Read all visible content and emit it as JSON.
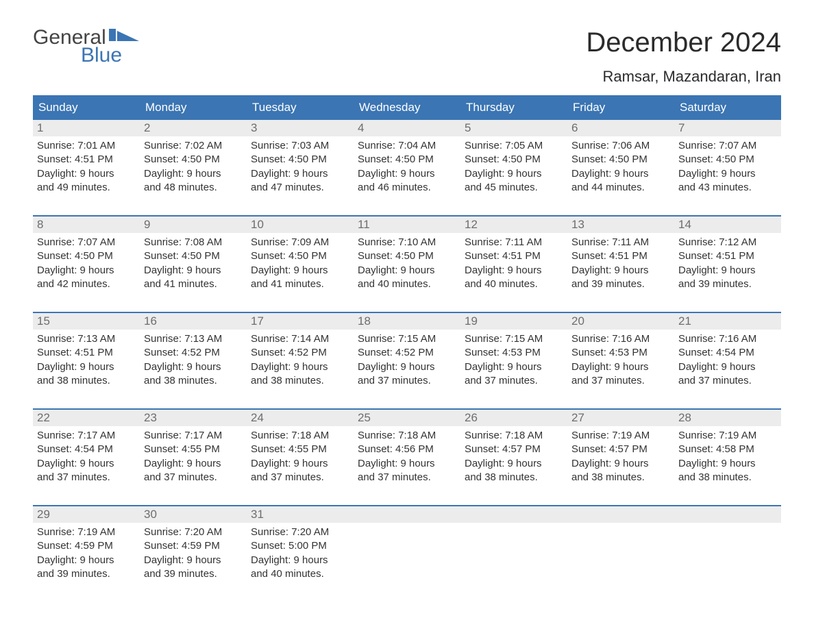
{
  "logo": {
    "word1": "General",
    "word2": "Blue",
    "accent_color": "#3b75b3"
  },
  "title": "December 2024",
  "location": "Ramsar, Mazandaran, Iran",
  "colors": {
    "header_bg": "#3b75b3",
    "header_text": "#ffffff",
    "daynum_bg": "#ececec",
    "daynum_text": "#6d6d6d",
    "body_text": "#333333",
    "page_bg": "#ffffff",
    "row_border": "#3b75b3"
  },
  "typography": {
    "title_fontsize": 40,
    "location_fontsize": 22,
    "header_fontsize": 17,
    "daynum_fontsize": 17,
    "body_fontsize": 15
  },
  "day_names": [
    "Sunday",
    "Monday",
    "Tuesday",
    "Wednesday",
    "Thursday",
    "Friday",
    "Saturday"
  ],
  "weeks": [
    [
      {
        "n": "1",
        "sunrise": "Sunrise: 7:01 AM",
        "sunset": "Sunset: 4:51 PM",
        "d1": "Daylight: 9 hours",
        "d2": "and 49 minutes."
      },
      {
        "n": "2",
        "sunrise": "Sunrise: 7:02 AM",
        "sunset": "Sunset: 4:50 PM",
        "d1": "Daylight: 9 hours",
        "d2": "and 48 minutes."
      },
      {
        "n": "3",
        "sunrise": "Sunrise: 7:03 AM",
        "sunset": "Sunset: 4:50 PM",
        "d1": "Daylight: 9 hours",
        "d2": "and 47 minutes."
      },
      {
        "n": "4",
        "sunrise": "Sunrise: 7:04 AM",
        "sunset": "Sunset: 4:50 PM",
        "d1": "Daylight: 9 hours",
        "d2": "and 46 minutes."
      },
      {
        "n": "5",
        "sunrise": "Sunrise: 7:05 AM",
        "sunset": "Sunset: 4:50 PM",
        "d1": "Daylight: 9 hours",
        "d2": "and 45 minutes."
      },
      {
        "n": "6",
        "sunrise": "Sunrise: 7:06 AM",
        "sunset": "Sunset: 4:50 PM",
        "d1": "Daylight: 9 hours",
        "d2": "and 44 minutes."
      },
      {
        "n": "7",
        "sunrise": "Sunrise: 7:07 AM",
        "sunset": "Sunset: 4:50 PM",
        "d1": "Daylight: 9 hours",
        "d2": "and 43 minutes."
      }
    ],
    [
      {
        "n": "8",
        "sunrise": "Sunrise: 7:07 AM",
        "sunset": "Sunset: 4:50 PM",
        "d1": "Daylight: 9 hours",
        "d2": "and 42 minutes."
      },
      {
        "n": "9",
        "sunrise": "Sunrise: 7:08 AM",
        "sunset": "Sunset: 4:50 PM",
        "d1": "Daylight: 9 hours",
        "d2": "and 41 minutes."
      },
      {
        "n": "10",
        "sunrise": "Sunrise: 7:09 AM",
        "sunset": "Sunset: 4:50 PM",
        "d1": "Daylight: 9 hours",
        "d2": "and 41 minutes."
      },
      {
        "n": "11",
        "sunrise": "Sunrise: 7:10 AM",
        "sunset": "Sunset: 4:50 PM",
        "d1": "Daylight: 9 hours",
        "d2": "and 40 minutes."
      },
      {
        "n": "12",
        "sunrise": "Sunrise: 7:11 AM",
        "sunset": "Sunset: 4:51 PM",
        "d1": "Daylight: 9 hours",
        "d2": "and 40 minutes."
      },
      {
        "n": "13",
        "sunrise": "Sunrise: 7:11 AM",
        "sunset": "Sunset: 4:51 PM",
        "d1": "Daylight: 9 hours",
        "d2": "and 39 minutes."
      },
      {
        "n": "14",
        "sunrise": "Sunrise: 7:12 AM",
        "sunset": "Sunset: 4:51 PM",
        "d1": "Daylight: 9 hours",
        "d2": "and 39 minutes."
      }
    ],
    [
      {
        "n": "15",
        "sunrise": "Sunrise: 7:13 AM",
        "sunset": "Sunset: 4:51 PM",
        "d1": "Daylight: 9 hours",
        "d2": "and 38 minutes."
      },
      {
        "n": "16",
        "sunrise": "Sunrise: 7:13 AM",
        "sunset": "Sunset: 4:52 PM",
        "d1": "Daylight: 9 hours",
        "d2": "and 38 minutes."
      },
      {
        "n": "17",
        "sunrise": "Sunrise: 7:14 AM",
        "sunset": "Sunset: 4:52 PM",
        "d1": "Daylight: 9 hours",
        "d2": "and 38 minutes."
      },
      {
        "n": "18",
        "sunrise": "Sunrise: 7:15 AM",
        "sunset": "Sunset: 4:52 PM",
        "d1": "Daylight: 9 hours",
        "d2": "and 37 minutes."
      },
      {
        "n": "19",
        "sunrise": "Sunrise: 7:15 AM",
        "sunset": "Sunset: 4:53 PM",
        "d1": "Daylight: 9 hours",
        "d2": "and 37 minutes."
      },
      {
        "n": "20",
        "sunrise": "Sunrise: 7:16 AM",
        "sunset": "Sunset: 4:53 PM",
        "d1": "Daylight: 9 hours",
        "d2": "and 37 minutes."
      },
      {
        "n": "21",
        "sunrise": "Sunrise: 7:16 AM",
        "sunset": "Sunset: 4:54 PM",
        "d1": "Daylight: 9 hours",
        "d2": "and 37 minutes."
      }
    ],
    [
      {
        "n": "22",
        "sunrise": "Sunrise: 7:17 AM",
        "sunset": "Sunset: 4:54 PM",
        "d1": "Daylight: 9 hours",
        "d2": "and 37 minutes."
      },
      {
        "n": "23",
        "sunrise": "Sunrise: 7:17 AM",
        "sunset": "Sunset: 4:55 PM",
        "d1": "Daylight: 9 hours",
        "d2": "and 37 minutes."
      },
      {
        "n": "24",
        "sunrise": "Sunrise: 7:18 AM",
        "sunset": "Sunset: 4:55 PM",
        "d1": "Daylight: 9 hours",
        "d2": "and 37 minutes."
      },
      {
        "n": "25",
        "sunrise": "Sunrise: 7:18 AM",
        "sunset": "Sunset: 4:56 PM",
        "d1": "Daylight: 9 hours",
        "d2": "and 37 minutes."
      },
      {
        "n": "26",
        "sunrise": "Sunrise: 7:18 AM",
        "sunset": "Sunset: 4:57 PM",
        "d1": "Daylight: 9 hours",
        "d2": "and 38 minutes."
      },
      {
        "n": "27",
        "sunrise": "Sunrise: 7:19 AM",
        "sunset": "Sunset: 4:57 PM",
        "d1": "Daylight: 9 hours",
        "d2": "and 38 minutes."
      },
      {
        "n": "28",
        "sunrise": "Sunrise: 7:19 AM",
        "sunset": "Sunset: 4:58 PM",
        "d1": "Daylight: 9 hours",
        "d2": "and 38 minutes."
      }
    ],
    [
      {
        "n": "29",
        "sunrise": "Sunrise: 7:19 AM",
        "sunset": "Sunset: 4:59 PM",
        "d1": "Daylight: 9 hours",
        "d2": "and 39 minutes."
      },
      {
        "n": "30",
        "sunrise": "Sunrise: 7:20 AM",
        "sunset": "Sunset: 4:59 PM",
        "d1": "Daylight: 9 hours",
        "d2": "and 39 minutes."
      },
      {
        "n": "31",
        "sunrise": "Sunrise: 7:20 AM",
        "sunset": "Sunset: 5:00 PM",
        "d1": "Daylight: 9 hours",
        "d2": "and 40 minutes."
      },
      null,
      null,
      null,
      null
    ]
  ]
}
